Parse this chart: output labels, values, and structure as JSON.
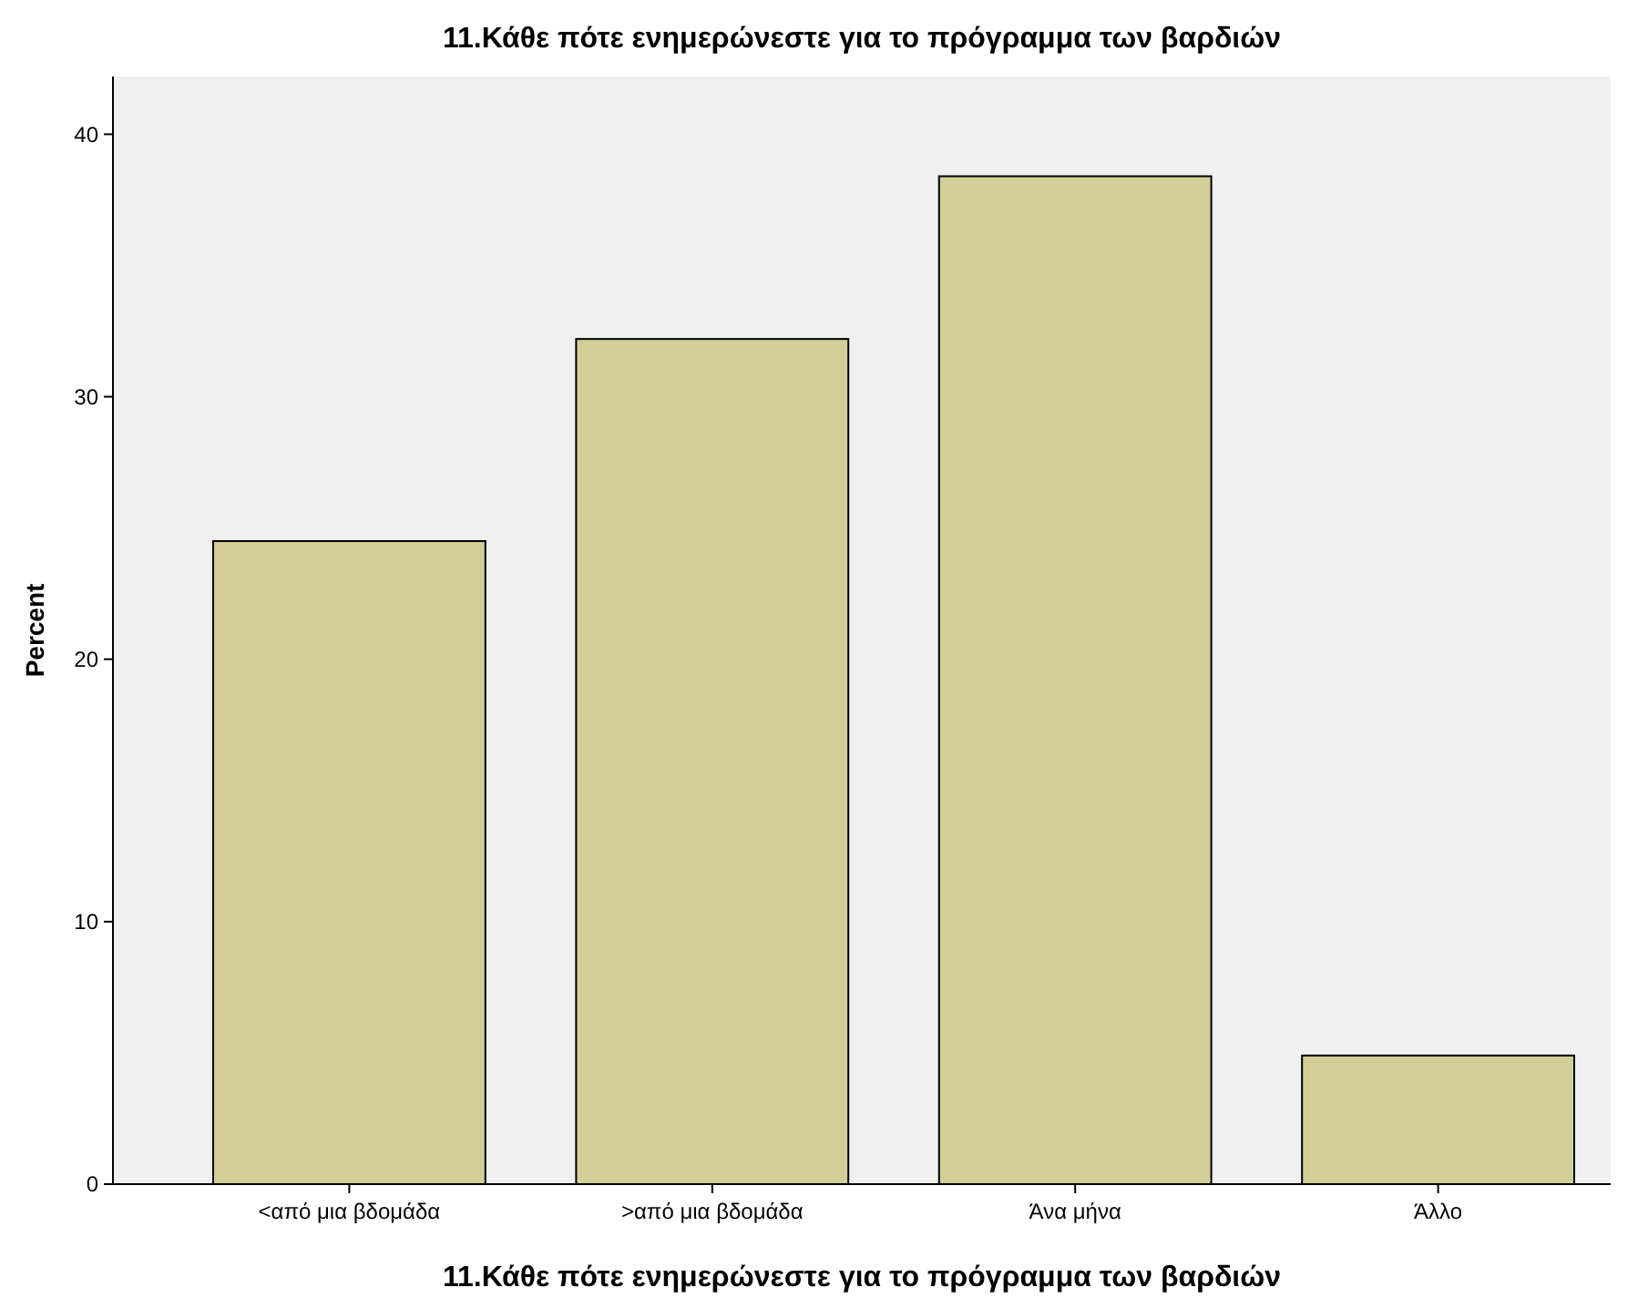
{
  "chart_data": {
    "type": "bar",
    "title": "11.Κάθε πότε ενημερώνεστε για το πρόγραμμα των βαρδιών",
    "xlabel": "11.Κάθε πότε ενημερώνεστε για το πρόγραμμα των βαρδιών",
    "ylabel": "Percent",
    "categories": [
      "<από μια βδομάδα",
      ">από μια βδομάδα",
      "Άνα μήνα",
      "Άλλο"
    ],
    "values": [
      24.5,
      32.2,
      38.4,
      4.9
    ],
    "color": "#d3ce97",
    "ylim": [
      0,
      42.2
    ],
    "yticks": [
      0,
      10,
      20,
      30,
      40
    ],
    "grid": false
  }
}
